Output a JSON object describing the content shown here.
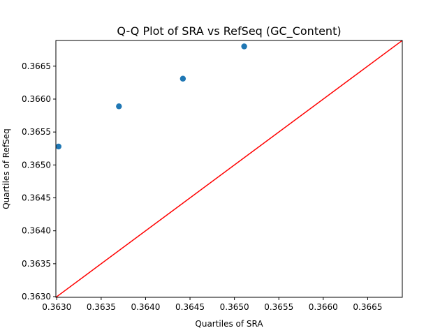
{
  "chart_data": {
    "type": "scatter",
    "title": "Q-Q Plot of SRA vs RefSeq (GC_Content)",
    "xlabel": "Quartiles of SRA",
    "ylabel": "Quartiles of RefSeq",
    "xlim": [
      0.36299,
      0.36689
    ],
    "ylim": [
      0.36299,
      0.36689
    ],
    "x_ticks": [
      0.363,
      0.3635,
      0.364,
      0.3645,
      0.365,
      0.3655,
      0.366,
      0.3665
    ],
    "x_tick_labels": [
      "0.3630",
      "0.3635",
      "0.3640",
      "0.3645",
      "0.3650",
      "0.3655",
      "0.3660",
      "0.3665"
    ],
    "y_ticks": [
      0.363,
      0.3635,
      0.364,
      0.3645,
      0.365,
      0.3655,
      0.366,
      0.3665
    ],
    "y_tick_labels": [
      "0.3630",
      "0.3635",
      "0.3640",
      "0.3645",
      "0.3650",
      "0.3655",
      "0.3660",
      "0.3665"
    ],
    "series": [
      {
        "type": "scatter",
        "color": "#1f77b4",
        "points": [
          {
            "x": 0.36302,
            "y": 0.36528
          },
          {
            "x": 0.3637,
            "y": 0.36589
          },
          {
            "x": 0.36442,
            "y": 0.36631
          },
          {
            "x": 0.36511,
            "y": 0.3668
          }
        ]
      },
      {
        "type": "line",
        "color": "#ff0000",
        "points": [
          {
            "x": 0.36299,
            "y": 0.36299
          },
          {
            "x": 0.36689,
            "y": 0.36689
          }
        ]
      }
    ],
    "grid": false
  }
}
